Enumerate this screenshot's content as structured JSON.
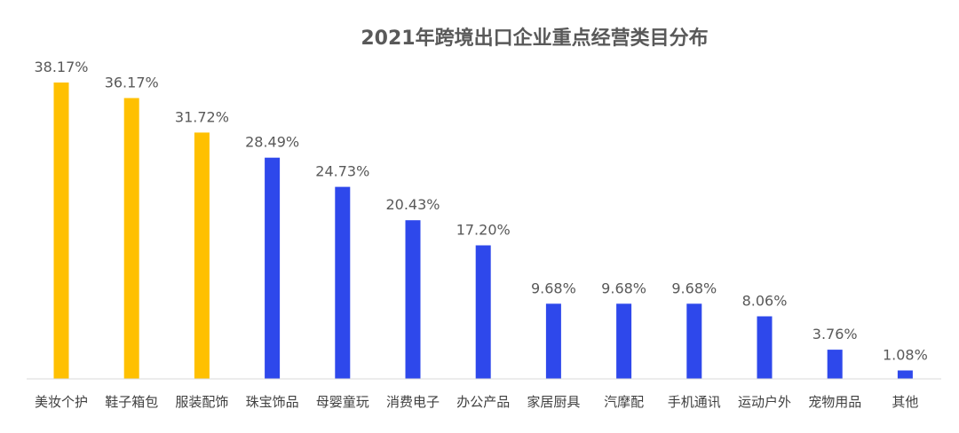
{
  "chart_data": {
    "type": "bar",
    "title": "2021年跨境出口企业重点经营类目分布",
    "xlabel": "",
    "ylabel": "",
    "ylim": [
      0,
      40
    ],
    "grid": false,
    "legend": "none",
    "value_suffix": "%",
    "categories": [
      "美妆个护",
      "鞋子箱包",
      "服装配饰",
      "珠宝饰品",
      "母婴童玩",
      "消费电子",
      "办公产品",
      "家居厨具",
      "汽摩配",
      "手机通讯",
      "运动户外",
      "宠物用品",
      "其他"
    ],
    "values": [
      38.17,
      36.17,
      31.72,
      28.49,
      24.73,
      20.43,
      17.2,
      9.68,
      9.68,
      9.68,
      8.06,
      3.76,
      1.08
    ],
    "value_labels": [
      "38.17%",
      "36.17%",
      "31.72%",
      "28.49%",
      "24.73%",
      "20.43%",
      "17.20%",
      "9.68%",
      "9.68%",
      "9.68%",
      "8.06%",
      "3.76%",
      "1.08%"
    ],
    "bar_colors": [
      "#FFC000",
      "#FFC000",
      "#FFC000",
      "#2E48EB",
      "#2E48EB",
      "#2E48EB",
      "#2E48EB",
      "#2E48EB",
      "#2E48EB",
      "#2E48EB",
      "#2E48EB",
      "#2E48EB",
      "#2E48EB"
    ],
    "axis_color": "#D9D9D9"
  }
}
